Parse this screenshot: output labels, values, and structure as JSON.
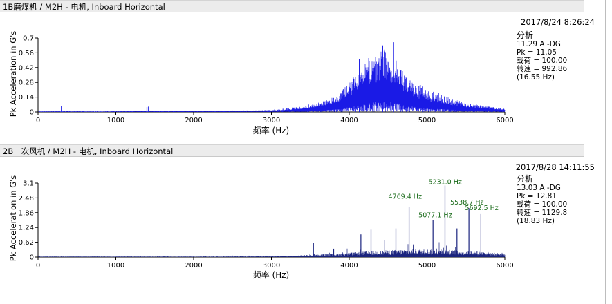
{
  "panels": [
    {
      "title": "1B磨煤机 / M2H - 电机, Inboard Horizontal",
      "timestamp": "2017/8/24 8:26:24",
      "info": {
        "heading": "分析",
        "line1": "11.29 A -DG",
        "line2": "Pk = 11.05",
        "line3": "载荷 = 100.00",
        "line4": "转速 = 992.86",
        "line5": "(16.55 Hz)"
      },
      "ylabel": "Pk Acceleration in G's",
      "xlabel": "频率 (Hz)"
    },
    {
      "title": "2B一次风机 / M2H - 电机, Inboard Horizontal",
      "timestamp": "2017/8/28 14:11:55",
      "info": {
        "heading": "分析",
        "line1": "13.03 A -DG",
        "line2": "Pk = 12.81",
        "line3": "载荷 = 100.00",
        "line4": "转速 = 1129.8",
        "line5": "(18.83 Hz)"
      },
      "ylabel": "Pk Acceleration in G's",
      "xlabel": "频率 (Hz)"
    }
  ],
  "chart_data": [
    {
      "type": "line",
      "title": "1B磨煤机 / M2H - 电机, Inboard Horizontal",
      "xlabel": "频率 (Hz)",
      "ylabel": "Pk Acceleration in G's",
      "xlim": [
        0,
        6000
      ],
      "ylim": [
        0,
        0.7
      ],
      "x_ticks": [
        0,
        1000,
        2000,
        3000,
        4000,
        5000,
        6000
      ],
      "y_ticks": [
        0,
        0.14,
        0.28,
        0.42,
        0.56,
        0.7
      ],
      "y_tick_labels": [
        "0",
        "0.14",
        "0.28",
        "0.42",
        "0.56",
        "0.7"
      ],
      "color": "#1a1ae6",
      "grid": false,
      "series": [
        {
          "x": [
            0,
            300,
            800,
            1200,
            1400,
            1700,
            2000,
            2500,
            2800,
            3000,
            3200,
            3400,
            3600,
            3800,
            3900,
            4000,
            4100,
            4200,
            4300,
            4400,
            4500,
            4600,
            4700,
            4800,
            4900,
            5000,
            5200,
            5400,
            5600,
            5800,
            6000
          ],
          "envelope_high": [
            0.005,
            0.008,
            0.006,
            0.01,
            0.01,
            0.01,
            0.01,
            0.012,
            0.015,
            0.02,
            0.03,
            0.05,
            0.08,
            0.13,
            0.18,
            0.25,
            0.33,
            0.42,
            0.5,
            0.52,
            0.55,
            0.45,
            0.35,
            0.3,
            0.25,
            0.2,
            0.15,
            0.1,
            0.07,
            0.05,
            0.03
          ],
          "envelope_mean": [
            0.003,
            0.004,
            0.003,
            0.005,
            0.005,
            0.005,
            0.005,
            0.006,
            0.008,
            0.01,
            0.015,
            0.025,
            0.04,
            0.07,
            0.1,
            0.14,
            0.19,
            0.24,
            0.27,
            0.28,
            0.28,
            0.24,
            0.19,
            0.15,
            0.12,
            0.1,
            0.075,
            0.05,
            0.035,
            0.025,
            0.015
          ]
        }
      ],
      "peaks": [
        {
          "x": 300,
          "y": 0.055
        },
        {
          "x": 1400,
          "y": 0.045
        },
        {
          "x": 1420,
          "y": 0.05
        },
        {
          "x": 4130,
          "y": 0.5
        },
        {
          "x": 4430,
          "y": 0.63
        },
        {
          "x": 4570,
          "y": 0.66
        }
      ]
    },
    {
      "type": "line",
      "title": "2B一次风机 / M2H - 电机, Inboard Horizontal",
      "xlabel": "频率 (Hz)",
      "ylabel": "Pk Acceleration in G's",
      "xlim": [
        0,
        6000
      ],
      "ylim": [
        0,
        3.1
      ],
      "x_ticks": [
        0,
        1000,
        2000,
        3000,
        4000,
        5000,
        6000
      ],
      "y_ticks": [
        0,
        0.62,
        1.24,
        1.86,
        2.48,
        3.1
      ],
      "y_tick_labels": [
        "0",
        "0.62",
        "1.24",
        "1.86",
        "2.48",
        "3.1"
      ],
      "color": "#1a237e",
      "grid": false,
      "series": [
        {
          "x": [
            0,
            1000,
            2000,
            3000,
            3300,
            3600,
            3900,
            4200,
            4500,
            4800,
            5100,
            5400,
            5700,
            6000
          ],
          "noise_floor": [
            0.02,
            0.02,
            0.02,
            0.03,
            0.05,
            0.08,
            0.12,
            0.18,
            0.22,
            0.25,
            0.25,
            0.22,
            0.18,
            0.12
          ]
        }
      ],
      "peaks": [
        {
          "x": 3540,
          "y": 0.6
        },
        {
          "x": 3800,
          "y": 0.35
        },
        {
          "x": 4150,
          "y": 0.95
        },
        {
          "x": 4280,
          "y": 1.15
        },
        {
          "x": 4450,
          "y": 0.7
        },
        {
          "x": 4600,
          "y": 1.2
        },
        {
          "x": 4769.4,
          "y": 2.1,
          "label": "4769.4 Hz"
        },
        {
          "x": 5077.1,
          "y": 1.55,
          "label": "5077.1 Hz"
        },
        {
          "x": 5231.0,
          "y": 3.0,
          "label": "5231.0 Hz"
        },
        {
          "x": 5385,
          "y": 1.2
        },
        {
          "x": 5538.7,
          "y": 2.05,
          "label": "5538.7 Hz"
        },
        {
          "x": 5692.5,
          "y": 1.8,
          "label": "5692.5 Hz"
        }
      ],
      "peak_label_color": "#1a6b1a"
    }
  ]
}
